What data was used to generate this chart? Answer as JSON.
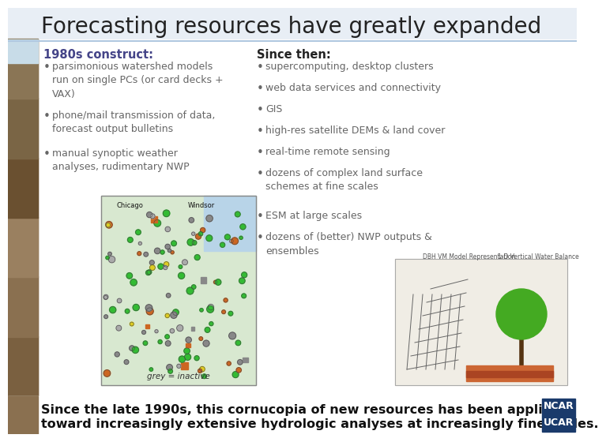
{
  "title": "Forecasting resources have greatly expanded",
  "title_fontsize": 20,
  "title_color": "#222222",
  "bg_color": "#ffffff",
  "left_panel_title": "1980s construct:",
  "left_bullets": [
    "parsimonious watershed models\nrun on single PCs (or card decks +\nVAX)",
    "phone/mail transmission of data,\nforecast output bulletins",
    "manual synoptic weather\nanalyses, rudimentary NWP"
  ],
  "right_panel_title": "Since then:",
  "right_bullets": [
    "supercomputing, desktop clusters",
    "web data services and connectivity",
    "GIS",
    "high-res satellite DEMs & land cover",
    "real-time remote sensing",
    "dozens of complex land surface\nschemes at fine scales",
    "ESM at large scales",
    "dozens of (better) NWP outputs &\nensembles"
  ],
  "bullet_color": "#666666",
  "left_title_color": "#444488",
  "right_title_color": "#222222",
  "footer_text_line1": "Since the late 1990s, this cornucopia of new resources has been applied",
  "footer_text_line2": "toward increasingly extensive hydrologic analyses at increasingly fine scales.",
  "footer_color": "#111111",
  "footer_fontsize": 11.5,
  "ncar_box_color": "#1a3a6b",
  "mountain_colors": [
    "#7a6040",
    "#8a7050",
    "#9a8060",
    "#6a5030",
    "#7a6545",
    "#8a7555"
  ],
  "title_bar_color": "#e8eef5",
  "separator_color": "#b0c8e0",
  "map_bg_color": "#d8e8d0",
  "map_water_color": "#b8d4e8",
  "model_bg_color": "#f0ede5",
  "grey_inactive_text": "grey = inactive",
  "map_label_chicago": "Chicago",
  "map_label_windsor": "Windsor",
  "content_bg_color": "#f5f5f5"
}
